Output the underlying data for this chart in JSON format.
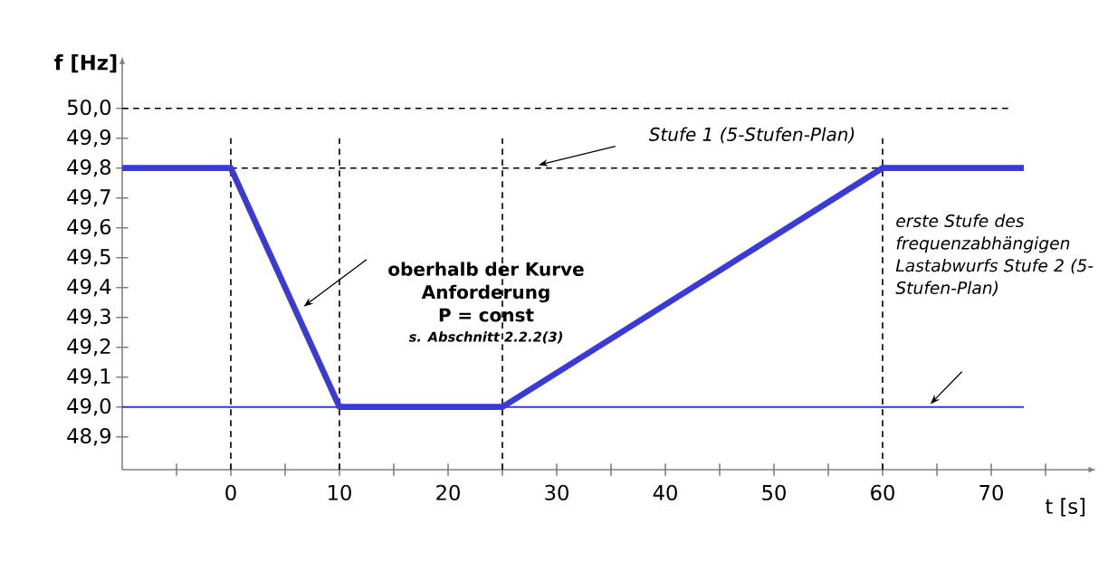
{
  "chart_data": {
    "type": "line",
    "xlabel": "t [s]",
    "ylabel": "f [Hz]",
    "xlim": [
      -10,
      79
    ],
    "ylim": [
      48.79,
      50.15
    ],
    "xticks": [
      {
        "value": -5,
        "label": null
      },
      0,
      {
        "value": 5,
        "label": null
      },
      10,
      {
        "value": 15,
        "label": null
      },
      20,
      {
        "value": 25,
        "label": null
      },
      30,
      {
        "value": 35,
        "label": null
      },
      40,
      {
        "value": 45,
        "label": null
      },
      50,
      {
        "value": 55,
        "label": null
      },
      60,
      {
        "value": 65,
        "label": null
      },
      70,
      {
        "value": 75,
        "label": null
      }
    ],
    "yticks": [
      {
        "value": 48.9,
        "label": "48,9"
      },
      {
        "value": 49.0,
        "label": "49,0"
      },
      {
        "value": 49.1,
        "label": "49,1"
      },
      {
        "value": 49.2,
        "label": "49,2"
      },
      {
        "value": 49.3,
        "label": "49,3"
      },
      {
        "value": 49.4,
        "label": "49,4"
      },
      {
        "value": 49.5,
        "label": "49,5"
      },
      {
        "value": 49.6,
        "label": "49,6"
      },
      {
        "value": 49.7,
        "label": "49,7"
      },
      {
        "value": 49.8,
        "label": "49,8"
      },
      {
        "value": 49.9,
        "label": "49,9"
      },
      {
        "value": 50.0,
        "label": "50,0"
      }
    ],
    "series": [
      {
        "color": "#3b3bd1",
        "x": [
          -10,
          0,
          10,
          25,
          60,
          73
        ],
        "values": [
          49.8,
          49.8,
          49.0,
          49.0,
          49.8,
          49.8
        ]
      }
    ],
    "ref_lines": [
      {
        "axis": "y",
        "value": 50.0,
        "color": "#000000",
        "line_style": "dashed"
      },
      {
        "axis": "y",
        "value": 49.8,
        "color": "#000000",
        "line_style": "dashed"
      },
      {
        "axis": "y",
        "value": 49.0,
        "color": "#3b3bd1",
        "line_style": "solid"
      },
      {
        "axis": "x",
        "value": 0,
        "color": "#000000",
        "line_style": "dashed"
      },
      {
        "axis": "x",
        "value": 10,
        "color": "#000000",
        "line_style": "dashed"
      },
      {
        "axis": "x",
        "value": 25,
        "color": "#000000",
        "line_style": "dashed"
      },
      {
        "axis": "x",
        "value": 60,
        "color": "#000000",
        "line_style": "dashed"
      }
    ],
    "annotations": [
      "Stufe 1 (5-Stufen-Plan)",
      "oberhalb der Kurve Anforderung P = const",
      "s. Abschnitt 2.2.2(3)",
      "erste Stufe des frequenzabhängigen Lastabwurfs Stufe 2 (5-Stufen-Plan)"
    ]
  }
}
